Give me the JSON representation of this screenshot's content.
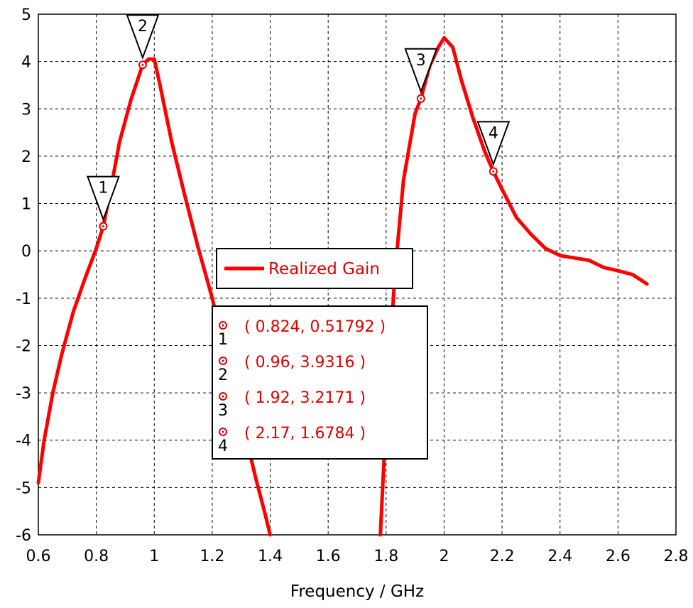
{
  "chart_data": {
    "type": "line",
    "title": "",
    "xlabel": "Frequency / GHz",
    "ylabel": "",
    "xlim": [
      0.6,
      2.8
    ],
    "ylim": [
      -6,
      5
    ],
    "xticks": [
      "0.6",
      "0.8",
      "1",
      "1.2",
      "1.4",
      "1.6",
      "1.8",
      "2",
      "2.2",
      "2.4",
      "2.6",
      "2.8"
    ],
    "yticks": [
      "5",
      "4",
      "3",
      "2",
      "1",
      "0",
      "-1",
      "-2",
      "-3",
      "-4",
      "-5",
      "-6"
    ],
    "grid": true,
    "legend": {
      "placement": "center",
      "entries": [
        "Realized Gain"
      ]
    },
    "colors": {
      "series": "#ff0000",
      "grid": "#000000"
    },
    "series": [
      {
        "name": "Realized Gain",
        "x": [
          0.6,
          0.62,
          0.65,
          0.68,
          0.72,
          0.76,
          0.8,
          0.824,
          0.85,
          0.88,
          0.92,
          0.96,
          0.98,
          1.0,
          1.02,
          1.06,
          1.1,
          1.15,
          1.2,
          1.25,
          1.3,
          1.35,
          1.38,
          1.4,
          1.78,
          1.8,
          1.83,
          1.86,
          1.9,
          1.92,
          1.95,
          1.98,
          2.0,
          2.03,
          2.06,
          2.1,
          2.14,
          2.17,
          2.2,
          2.25,
          2.3,
          2.35,
          2.4,
          2.45,
          2.5,
          2.55,
          2.6,
          2.65,
          2.7
        ],
        "y": [
          -4.9,
          -4.0,
          -3.0,
          -2.2,
          -1.3,
          -0.6,
          0.05,
          0.51792,
          1.3,
          2.3,
          3.2,
          3.9316,
          4.05,
          4.05,
          3.5,
          2.3,
          1.3,
          0.1,
          -1.0,
          -2.3,
          -3.5,
          -4.8,
          -5.5,
          -6.0,
          -6.0,
          -3.5,
          -0.5,
          1.5,
          2.9,
          3.2171,
          3.9,
          4.3,
          4.5,
          4.3,
          3.6,
          2.8,
          2.1,
          1.6784,
          1.3,
          0.7,
          0.35,
          0.05,
          -0.1,
          -0.15,
          -0.2,
          -0.35,
          -0.42,
          -0.5,
          -0.7
        ]
      }
    ],
    "markers": [
      {
        "id": "1",
        "x": 0.824,
        "y": 0.51792,
        "label": "( 0.824, 0.51792 )"
      },
      {
        "id": "2",
        "x": 0.96,
        "y": 3.9316,
        "label": "( 0.96, 3.9316 )"
      },
      {
        "id": "3",
        "x": 1.92,
        "y": 3.2171,
        "label": "( 1.92, 3.2171 )"
      },
      {
        "id": "4",
        "x": 2.17,
        "y": 1.6784,
        "label": "( 2.17, 1.6784 )"
      }
    ]
  }
}
